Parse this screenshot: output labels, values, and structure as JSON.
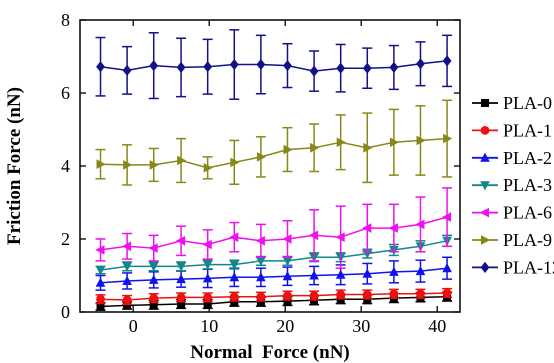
{
  "chart_data": {
    "type": "line",
    "xlabel": "Normal  Force (nN)",
    "ylabel": "Friction Force (nN)",
    "xlim": [
      -7,
      43
    ],
    "ylim": [
      0,
      8
    ],
    "xticks": [
      0,
      10,
      20,
      30,
      40
    ],
    "yticks": [
      0,
      2,
      4,
      6,
      8
    ],
    "grid": false,
    "legend_position": "right",
    "x": [
      -4.3,
      -0.8,
      2.7,
      6.3,
      9.8,
      13.3,
      16.8,
      20.3,
      23.8,
      27.3,
      30.8,
      34.3,
      37.8,
      41.3
    ],
    "series": [
      {
        "name": "PLA-0",
        "color": "#000000",
        "marker": "square",
        "values": [
          0.15,
          0.18,
          0.2,
          0.22,
          0.22,
          0.28,
          0.28,
          0.3,
          0.32,
          0.35,
          0.35,
          0.38,
          0.4,
          0.42
        ],
        "errors": [
          0.1,
          0.1,
          0.12,
          0.12,
          0.12,
          0.12,
          0.12,
          0.12,
          0.12,
          0.12,
          0.12,
          0.12,
          0.12,
          0.12
        ]
      },
      {
        "name": "PLA-1",
        "color": "#ee1111",
        "marker": "circle",
        "values": [
          0.35,
          0.33,
          0.38,
          0.4,
          0.4,
          0.42,
          0.42,
          0.45,
          0.45,
          0.48,
          0.48,
          0.5,
          0.5,
          0.52
        ],
        "errors": [
          0.12,
          0.12,
          0.12,
          0.12,
          0.12,
          0.12,
          0.12,
          0.12,
          0.12,
          0.12,
          0.12,
          0.12,
          0.12,
          0.12
        ]
      },
      {
        "name": "PLA-2",
        "color": "#1111ee",
        "marker": "triangle-up",
        "values": [
          0.8,
          0.85,
          0.88,
          0.9,
          0.92,
          0.95,
          0.95,
          0.98,
          1.0,
          1.02,
          1.05,
          1.1,
          1.12,
          1.2
        ],
        "errors": [
          0.2,
          0.22,
          0.22,
          0.22,
          0.25,
          0.25,
          0.25,
          0.25,
          0.25,
          0.27,
          0.28,
          0.3,
          0.3,
          0.3
        ]
      },
      {
        "name": "PLA-3",
        "color": "#118888",
        "marker": "triangle-down",
        "values": [
          1.15,
          1.25,
          1.25,
          1.25,
          1.3,
          1.3,
          1.4,
          1.4,
          1.5,
          1.5,
          1.6,
          1.7,
          1.8,
          1.95
        ],
        "errors": [
          0.1,
          0.12,
          0.12,
          0.12,
          0.12,
          0.12,
          0.12,
          0.12,
          0.12,
          0.12,
          0.12,
          0.15,
          0.15,
          0.15
        ]
      },
      {
        "name": "PLA-6",
        "color": "#ee11ee",
        "marker": "triangle-left",
        "values": [
          1.7,
          1.8,
          1.75,
          1.95,
          1.85,
          2.05,
          1.95,
          2.0,
          2.1,
          2.05,
          2.3,
          2.3,
          2.4,
          2.6
        ],
        "errors": [
          0.3,
          0.35,
          0.35,
          0.4,
          0.4,
          0.4,
          0.45,
          0.5,
          0.7,
          0.85,
          0.65,
          0.65,
          0.75,
          0.8
        ]
      },
      {
        "name": "PLA-9",
        "color": "#88881a",
        "marker": "triangle-right",
        "values": [
          4.05,
          4.03,
          4.03,
          4.15,
          3.95,
          4.1,
          4.25,
          4.45,
          4.5,
          4.65,
          4.5,
          4.65,
          4.7,
          4.75
        ],
        "errors": [
          0.4,
          0.55,
          0.45,
          0.6,
          0.3,
          0.6,
          0.55,
          0.6,
          0.65,
          0.75,
          0.95,
          0.9,
          0.95,
          1.05
        ]
      },
      {
        "name": "PLA-12",
        "color": "#111188",
        "marker": "diamond",
        "values": [
          6.72,
          6.62,
          6.75,
          6.7,
          6.72,
          6.78,
          6.78,
          6.75,
          6.6,
          6.68,
          6.68,
          6.7,
          6.8,
          6.88
        ],
        "errors": [
          0.8,
          0.65,
          0.9,
          0.8,
          0.75,
          0.95,
          0.8,
          0.6,
          0.55,
          0.65,
          0.55,
          0.6,
          0.6,
          0.7
        ]
      }
    ]
  }
}
